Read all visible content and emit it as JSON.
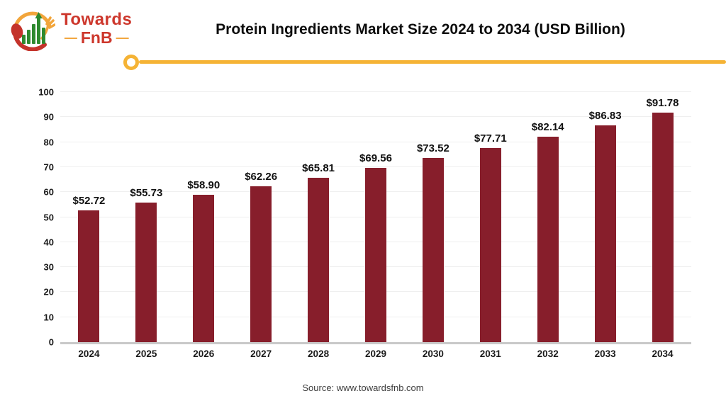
{
  "header": {
    "title": "Protein Ingredients Market Size 2024 to 2034 (USD Billion)"
  },
  "logo": {
    "line1": "Towards",
    "line2": "FnB",
    "dash": "—"
  },
  "footer": {
    "source": "Source: www.towardsfnb.com"
  },
  "colors": {
    "bar": "#871e2b",
    "accent_gold": "#f5b335",
    "logo_red": "#cd372c",
    "logo_green": "#2e8a2f",
    "axis_line": "#c9c9c9"
  },
  "chart_data": {
    "type": "bar",
    "title": "Protein Ingredients Market Size 2024 to 2034 (USD Billion)",
    "categories": [
      "2024",
      "2025",
      "2026",
      "2027",
      "2028",
      "2029",
      "2030",
      "2031",
      "2032",
      "2033",
      "2034"
    ],
    "values": [
      52.72,
      55.73,
      58.9,
      62.26,
      65.81,
      69.56,
      73.52,
      77.71,
      82.14,
      86.83,
      91.78
    ],
    "labels": [
      "$52.72",
      "$55.73",
      "$58.90",
      "$62.26",
      "$65.81",
      "$69.56",
      "$73.52",
      "$77.71",
      "$82.14",
      "$86.83",
      "$91.78"
    ],
    "xlabel": "",
    "ylabel": "",
    "ylim": [
      0,
      100
    ],
    "yticks": [
      0,
      10,
      20,
      30,
      40,
      50,
      60,
      70,
      80,
      90,
      100
    ],
    "grid": true,
    "legend": false,
    "bar_color": "#871e2b"
  }
}
